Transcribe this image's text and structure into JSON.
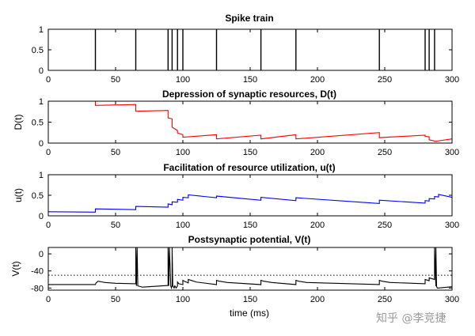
{
  "figure": {
    "xlabel": "time (ms)",
    "watermark": "知乎 @李竞捷"
  },
  "chart_data": [
    {
      "type": "line",
      "title": "Spike train",
      "xlabel": "",
      "ylabel": "",
      "xlim": [
        0,
        300
      ],
      "ylim": [
        0,
        1
      ],
      "xticks": [
        0,
        50,
        100,
        150,
        200,
        250,
        300
      ],
      "yticks": [
        0,
        0.5,
        1
      ],
      "color": "#000000",
      "spike_times": [
        35,
        65,
        89,
        92,
        96,
        100,
        125,
        158,
        184,
        246,
        280,
        283,
        287
      ]
    },
    {
      "type": "line",
      "title": "Depression of synaptic resources, D(t)",
      "xlabel": "",
      "ylabel": "D(t)",
      "xlim": [
        0,
        300
      ],
      "ylim": [
        0,
        1
      ],
      "xticks": [
        0,
        50,
        100,
        150,
        200,
        250,
        300
      ],
      "yticks": [
        0,
        0.5,
        1
      ],
      "color": "#ff0000",
      "x": [
        0,
        35,
        35,
        65,
        65,
        89,
        89,
        92,
        92,
        96,
        96,
        100,
        100,
        125,
        125,
        158,
        158,
        184,
        184,
        246,
        246,
        280,
        280,
        283,
        283,
        287,
        287,
        300
      ],
      "y": [
        1.0,
        1.0,
        0.9,
        0.92,
        0.76,
        0.78,
        0.6,
        0.58,
        0.38,
        0.3,
        0.24,
        0.2,
        0.14,
        0.2,
        0.1,
        0.19,
        0.1,
        0.2,
        0.1,
        0.25,
        0.13,
        0.19,
        0.16,
        0.15,
        0.08,
        0.05,
        0.04,
        0.1
      ]
    },
    {
      "type": "line",
      "title": "Facilitation of resource utilization, u(t)",
      "xlabel": "",
      "ylabel": "u(t)",
      "xlim": [
        0,
        300
      ],
      "ylim": [
        0,
        1
      ],
      "xticks": [
        0,
        50,
        100,
        150,
        200,
        250,
        300
      ],
      "yticks": [
        0,
        0.5,
        1
      ],
      "color": "#0000ff",
      "x": [
        0,
        35,
        35,
        65,
        65,
        89,
        89,
        92,
        92,
        96,
        96,
        100,
        100,
        104,
        104,
        125,
        125,
        158,
        158,
        184,
        184,
        246,
        246,
        280,
        280,
        283,
        283,
        287,
        287,
        290,
        290,
        300
      ],
      "y": [
        0.1,
        0.09,
        0.17,
        0.15,
        0.23,
        0.21,
        0.29,
        0.27,
        0.34,
        0.33,
        0.4,
        0.38,
        0.45,
        0.44,
        0.51,
        0.44,
        0.48,
        0.38,
        0.45,
        0.37,
        0.44,
        0.3,
        0.38,
        0.31,
        0.37,
        0.36,
        0.42,
        0.41,
        0.47,
        0.46,
        0.52,
        0.45
      ]
    },
    {
      "type": "line",
      "title": "Postsynaptic potential, V(t)",
      "xlabel": "time (ms)",
      "ylabel": "V(t)",
      "xlim": [
        0,
        300
      ],
      "ylim": [
        -85,
        15
      ],
      "xticks": [
        0,
        50,
        100,
        150,
        200,
        250,
        300
      ],
      "yticks": [
        0,
        -40,
        -80
      ],
      "threshold": -50,
      "color": "#000000",
      "x": [
        0,
        35,
        35.5,
        37,
        42,
        50,
        65,
        65,
        65.5,
        66,
        66.5,
        70,
        89,
        89,
        89.5,
        90,
        91,
        91.5,
        92,
        92,
        92.5,
        93.5,
        94,
        95,
        96,
        96,
        97,
        100,
        100,
        101,
        104,
        104,
        106,
        110,
        125,
        125,
        127,
        133,
        158,
        158,
        160,
        166,
        184,
        184,
        186,
        192,
        246,
        246,
        248,
        254,
        280,
        280,
        282,
        283,
        283,
        285,
        287,
        287,
        288,
        288,
        288.5,
        289,
        290,
        300
      ],
      "y": [
        -72,
        -72,
        -68,
        -64,
        -67,
        -69,
        -70,
        15,
        -75,
        15,
        -75,
        -78,
        -74,
        15,
        -75,
        15,
        -75,
        -80,
        -75,
        15,
        -75,
        -80,
        -75,
        -80,
        -75,
        -66,
        -70,
        -72,
        -62,
        -64,
        -68,
        -60,
        -62,
        -66,
        -72,
        -62,
        -64,
        -67,
        -72,
        -62,
        -64,
        -67,
        -72,
        -62,
        -64,
        -67,
        -72,
        -62,
        -64,
        -67,
        -70,
        -60,
        -62,
        -63,
        -56,
        -58,
        -60,
        15,
        -76,
        15,
        -76,
        -80,
        -80,
        -77
      ]
    }
  ]
}
